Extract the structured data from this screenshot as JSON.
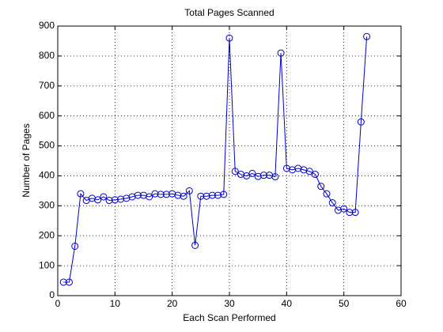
{
  "chart_data": {
    "type": "line",
    "title": "Total Pages Scanned",
    "x_label": "Each Scan Performed",
    "y_label": "Number of Pages",
    "x": [
      1,
      2,
      3,
      4,
      5,
      6,
      7,
      8,
      9,
      10,
      11,
      12,
      13,
      14,
      15,
      16,
      17,
      18,
      19,
      20,
      21,
      22,
      23,
      24,
      25,
      26,
      27,
      28,
      29,
      30,
      31,
      32,
      33,
      34,
      35,
      36,
      37,
      38,
      39,
      40,
      41,
      42,
      43,
      44,
      45,
      46,
      47,
      48,
      49,
      50,
      51,
      52,
      53,
      54
    ],
    "series": [
      {
        "name": "Total Pages",
        "color": "#0000cc",
        "values": [
          45,
          45,
          165,
          340,
          318,
          325,
          320,
          330,
          318,
          320,
          322,
          325,
          330,
          335,
          335,
          330,
          340,
          338,
          338,
          340,
          335,
          332,
          350,
          168,
          332,
          332,
          335,
          335,
          338,
          860,
          415,
          405,
          400,
          408,
          398,
          402,
          402,
          397,
          810,
          425,
          420,
          425,
          420,
          415,
          405,
          365,
          340,
          310,
          285,
          290,
          278,
          278,
          580,
          865
        ]
      }
    ],
    "xlim": [
      0,
      60
    ],
    "xticks": [
      0,
      10,
      20,
      30,
      40,
      50,
      60
    ],
    "ylim": [
      0,
      900
    ],
    "yticks": [
      0,
      100,
      200,
      300,
      400,
      500,
      600,
      700,
      800,
      900
    ],
    "grid": true,
    "marker": "circle"
  }
}
